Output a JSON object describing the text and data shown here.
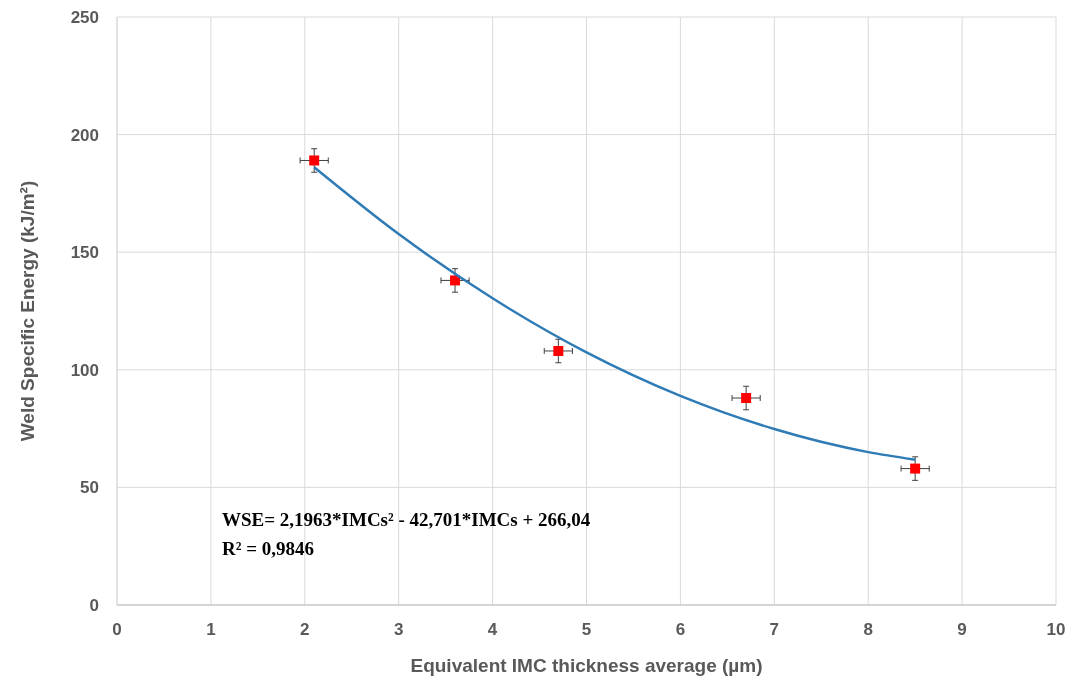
{
  "chart_data": {
    "type": "scatter",
    "xlabel": "Equivalent IMC thickness average (µm)",
    "ylabel": "Weld Specific Energy (kJ/m²)",
    "xlim": [
      0,
      10
    ],
    "xticks": [
      0,
      1,
      2,
      3,
      4,
      5,
      6,
      7,
      8,
      9,
      10
    ],
    "ylim": [
      0,
      250
    ],
    "yticks": [
      0,
      50,
      100,
      150,
      200,
      250
    ],
    "grid": true,
    "annotations": [
      "WSE= 2,1963*IMCs² - 42,701*IMCs + 266,04",
      "R² = 0,9846"
    ],
    "series": [
      {
        "color": "#ff0000",
        "marker": "square",
        "x": [
          2.1,
          3.6,
          4.7,
          6.7,
          8.5
        ],
        "values": [
          189,
          138,
          108,
          88,
          58
        ],
        "errors": [
          5,
          5,
          5,
          5,
          5
        ],
        "xerrors": [
          0.15,
          0.15,
          0.15,
          0.15,
          0.15
        ]
      },
      {
        "type": "line",
        "color": "#2e7bb6",
        "line_style": "solid",
        "x": [
          2.1,
          3,
          4,
          5,
          6,
          7,
          8,
          8.5
        ],
        "values": [
          186.1,
          157.7,
          130.4,
          107.4,
          88.9,
          74.8,
          65.0,
          61.8
        ]
      }
    ]
  }
}
